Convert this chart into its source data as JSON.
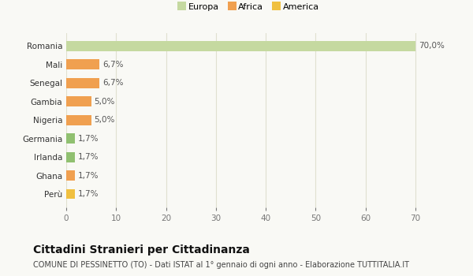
{
  "categories": [
    "Perù",
    "Ghana",
    "Irlanda",
    "Germania",
    "Nigeria",
    "Gambia",
    "Senegal",
    "Mali",
    "Romania"
  ],
  "values": [
    1.7,
    1.7,
    1.7,
    1.7,
    5.0,
    5.0,
    6.7,
    6.7,
    70.0
  ],
  "bar_colors": [
    "#f0c040",
    "#f0a050",
    "#90c070",
    "#90c070",
    "#f0a050",
    "#f0a050",
    "#f0a050",
    "#f0a050",
    "#c5d9a0"
  ],
  "labels": [
    "1,7%",
    "1,7%",
    "1,7%",
    "1,7%",
    "5,0%",
    "5,0%",
    "6,7%",
    "6,7%",
    "70,0%"
  ],
  "legend": [
    {
      "label": "Europa",
      "color": "#c5d9a0"
    },
    {
      "label": "Africa",
      "color": "#f0a050"
    },
    {
      "label": "America",
      "color": "#f0c040"
    }
  ],
  "xlim": [
    0,
    73
  ],
  "xticks": [
    0,
    10,
    20,
    30,
    40,
    50,
    60,
    70
  ],
  "title": "Cittadini Stranieri per Cittadinanza",
  "subtitle": "COMUNE DI PESSINETTO (TO) - Dati ISTAT al 1° gennaio di ogni anno - Elaborazione TUTTITALIA.IT",
  "background_color": "#f9f9f5",
  "grid_color": "#e0e0d0",
  "bar_height": 0.55,
  "label_fontsize": 7.5,
  "ytick_fontsize": 7.5,
  "xtick_fontsize": 7.5,
  "title_fontsize": 10,
  "subtitle_fontsize": 7,
  "legend_fontsize": 8
}
